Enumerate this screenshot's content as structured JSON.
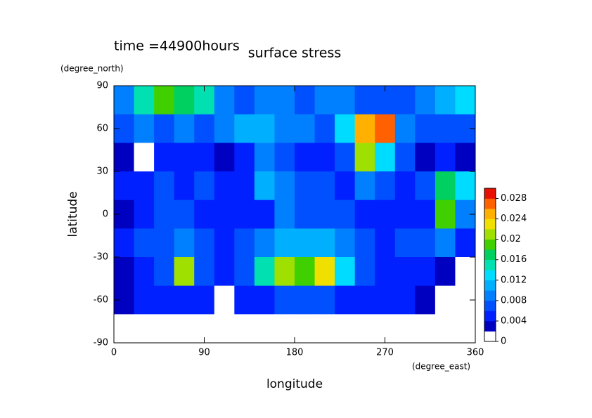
{
  "chart_data": {
    "type": "contour",
    "title": "surface stress",
    "subtitle": "time =44900hours",
    "x_label": "longitude",
    "x_units": "(degree_east)",
    "y_label": "latitude",
    "y_units": "(degree_north)",
    "xlim": [
      0,
      360
    ],
    "xticks": [
      0,
      90,
      180,
      270,
      360
    ],
    "ylim": [
      -90,
      90
    ],
    "yticks": [
      -90,
      -60,
      -30,
      0,
      30,
      60,
      90
    ],
    "x": [
      10,
      30,
      50,
      70,
      90,
      110,
      130,
      150,
      170,
      190,
      210,
      230,
      250,
      270,
      290,
      310,
      330,
      350
    ],
    "y": [
      80,
      60,
      40,
      20,
      0,
      -20,
      -40,
      -60,
      -80
    ],
    "z": [
      [
        0.008,
        0.014,
        0.018,
        0.016,
        0.014,
        0.008,
        0.006,
        0.008,
        0.008,
        0.006,
        0.008,
        0.008,
        0.006,
        0.006,
        0.006,
        0.008,
        0.01,
        0.012
      ],
      [
        0.006,
        0.008,
        0.006,
        0.008,
        0.006,
        0.008,
        0.01,
        0.01,
        0.008,
        0.008,
        0.006,
        0.012,
        0.024,
        0.026,
        0.008,
        0.006,
        0.006,
        0.006
      ],
      [
        0.002,
        0.001,
        0.004,
        0.004,
        0.004,
        0.002,
        0.004,
        0.008,
        0.006,
        0.004,
        0.004,
        0.006,
        0.02,
        0.012,
        0.006,
        0.002,
        0.004,
        0.002
      ],
      [
        0.004,
        0.004,
        0.006,
        0.004,
        0.006,
        0.004,
        0.004,
        0.01,
        0.008,
        0.006,
        0.006,
        0.004,
        0.008,
        0.006,
        0.004,
        0.006,
        0.016,
        0.012
      ],
      [
        0.002,
        0.004,
        0.006,
        0.006,
        0.004,
        0.004,
        0.004,
        0.004,
        0.008,
        0.006,
        0.006,
        0.006,
        0.004,
        0.004,
        0.004,
        0.004,
        0.018,
        0.008
      ],
      [
        0.004,
        0.006,
        0.006,
        0.008,
        0.006,
        0.004,
        0.006,
        0.008,
        0.01,
        0.01,
        0.01,
        0.008,
        0.006,
        0.004,
        0.006,
        0.006,
        0.008,
        0.004
      ],
      [
        0.002,
        0.004,
        0.006,
        0.02,
        0.006,
        0.004,
        0.006,
        0.014,
        0.02,
        0.018,
        0.022,
        0.012,
        0.006,
        0.004,
        0.004,
        0.004,
        0.002,
        0.001
      ],
      [
        0.002,
        0.004,
        0.004,
        0.004,
        0.004,
        0.001,
        0.004,
        0.004,
        0.006,
        0.006,
        0.006,
        0.004,
        0.004,
        0.004,
        0.004,
        0.002,
        0.001,
        0.001
      ],
      [
        0,
        0,
        0,
        0,
        0,
        0,
        0,
        0,
        0,
        0,
        0,
        0,
        0,
        0,
        0,
        0,
        0,
        0
      ]
    ],
    "zlim": [
      0,
      0.03
    ],
    "zticks": [
      0,
      0.004,
      0.008,
      0.012,
      0.016,
      0.02,
      0.024,
      0.028
    ],
    "levels": [
      0,
      0.002,
      0.004,
      0.006,
      0.008,
      0.01,
      0.012,
      0.014,
      0.016,
      0.018,
      0.02,
      0.022,
      0.024,
      0.026,
      0.028,
      0.03
    ],
    "colors": [
      "#ffffff",
      "#0000c0",
      "#0020ff",
      "#0050ff",
      "#0080ff",
      "#00b0ff",
      "#00dcff",
      "#00e0b0",
      "#00d060",
      "#40d000",
      "#a0e000",
      "#f0e000",
      "#ffb000",
      "#ff6000",
      "#e81000"
    ]
  }
}
